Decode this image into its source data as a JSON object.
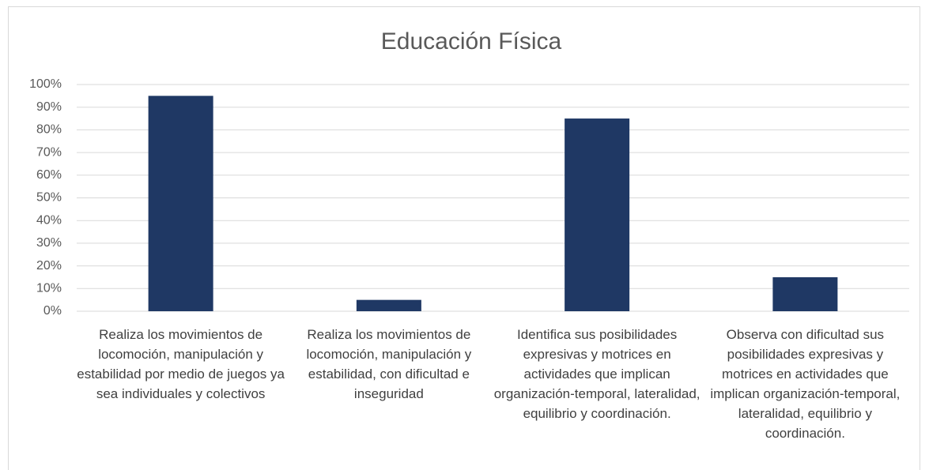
{
  "chart_data": {
    "type": "bar",
    "title": "Educación Física",
    "categories": [
      "Realiza los movimientos de locomoción, manipulación y estabilidad por medio de juegos ya sea individuales y colectivos",
      "Realiza los movimientos de locomoción, manipulación y estabilidad, con dificultad e inseguridad",
      "Identifica sus posibilidades expresivas y motrices en actividades que implican organización-temporal, lateralidad, equilibrio y coordinación.",
      "Observa con dificultad sus posibilidades expresivas y motrices en actividades que implican organización-temporal, lateralidad, equilibrio y coordinación."
    ],
    "values": [
      95,
      5,
      85,
      15
    ],
    "color": "#1f3864",
    "ylim": [
      0,
      100
    ],
    "yticks": [
      {
        "value": 0,
        "label": "0%"
      },
      {
        "value": 10,
        "label": "10%"
      },
      {
        "value": 20,
        "label": "20%"
      },
      {
        "value": 30,
        "label": "30%"
      },
      {
        "value": 40,
        "label": "40%"
      },
      {
        "value": 50,
        "label": "50%"
      },
      {
        "value": 60,
        "label": "60%"
      },
      {
        "value": 70,
        "label": "70%"
      },
      {
        "value": 80,
        "label": "80%"
      },
      {
        "value": 90,
        "label": "90%"
      },
      {
        "value": 100,
        "label": "100%"
      }
    ],
    "grid": true
  }
}
